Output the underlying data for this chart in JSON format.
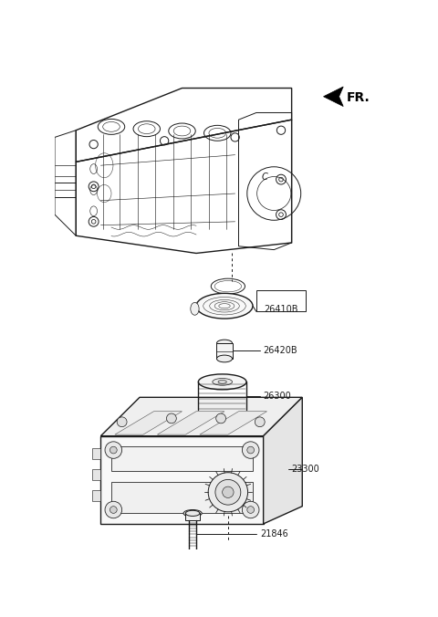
{
  "bg_color": "#ffffff",
  "lc": "#1a1a1a",
  "lw": 0.7,
  "lw2": 1.0,
  "fig_w": 4.8,
  "fig_h": 6.76,
  "dpi": 100,
  "label_fs": 7.0,
  "fr_label": "FR.",
  "parts": [
    "26410B",
    "26420B",
    "26300",
    "23300",
    "21846"
  ]
}
